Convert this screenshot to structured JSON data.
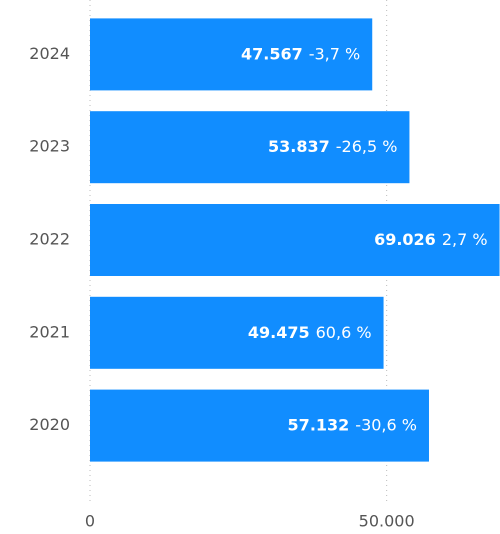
{
  "chart_data": {
    "type": "barh",
    "categories": [
      "2024",
      "2023",
      "2022",
      "2021",
      "2020"
    ],
    "values": [
      47567,
      53837,
      69026,
      49475,
      57132
    ],
    "value_labels": [
      "47.567",
      "53.837",
      "69.026",
      "49.475",
      "57.132"
    ],
    "change_labels": [
      "-3,7 %",
      "-26,5 %",
      "2,7 %",
      "60,6 %",
      "-30,6 %"
    ],
    "color": "#118dff",
    "xlim": [
      0,
      69100
    ],
    "xticks": [
      0,
      {
        "value": 50000,
        "label": "50.000"
      }
    ],
    "grid": true
  }
}
